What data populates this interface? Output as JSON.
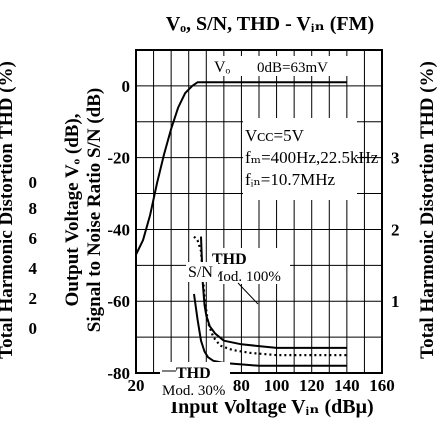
{
  "chart_data": {
    "type": "line",
    "title": "Vₒ, S/N, THD - Vᵢₙ (FM)",
    "xlabel": "Input Voltage Vᵢₙ (dBμ)",
    "ylabel": "Output Voltage Vₒ (dB), Signal to Noise Ratio S/N (dB)",
    "ylabel_line1": "Output Voltage Vₒ (dB),",
    "ylabel_line2": "Signal to Noise Ratio S/N (dB)",
    "y2label": "Total Harmonic Distortion THD (%)",
    "y2label_left": "Total Harmonic Distortion THD (%)",
    "xlim": [
      20,
      160
    ],
    "ylim": [
      -80,
      10
    ],
    "y2lim": [
      0,
      4.5
    ],
    "grid": true,
    "x_ticks": [
      20,
      40,
      60,
      80,
      100,
      120,
      140,
      160
    ],
    "x_tick_labels": [
      "20",
      "40",
      "60",
      "80",
      "100",
      "120",
      "140",
      "160"
    ],
    "y_ticks": [
      0,
      -20,
      -40,
      -60,
      -80
    ],
    "y_tick_labels": [
      "0",
      "-20",
      "-40",
      "-60",
      "-80"
    ],
    "y2_ticks": [
      1,
      2,
      3
    ],
    "y2_tick_labels": [
      "1",
      "2",
      "3"
    ],
    "left_cut_labels": [
      "0",
      "8",
      "6",
      "4",
      "2",
      "0"
    ],
    "annotations": {
      "vo_label": "Vₒ",
      "vo_ref": "0dB=63mV",
      "vcc": "Vᴄᴄ=5V",
      "fm": "fₘ=400Hz,22.5kHz",
      "fin": "fᵢₙ=10.7MHz",
      "thd_100_line1": "THD",
      "thd_100_line2": "Mod. 100%",
      "sn": "S/N",
      "thd_30_line1": "THD",
      "thd_30_line2": "Mod. 30%"
    },
    "series": [
      {
        "name": "Vₒ",
        "axis": "left",
        "style": "solid",
        "x": [
          20,
          24,
          28,
          32,
          36,
          40,
          44,
          48,
          52,
          55,
          140
        ],
        "y": [
          -47,
          -43,
          -36,
          -27,
          -19,
          -12,
          -6,
          -2,
          0,
          1,
          1
        ]
      },
      {
        "name": "S/N",
        "axis": "left",
        "style": "solid",
        "x": [
          57,
          58,
          59,
          60,
          62,
          65,
          70,
          80,
          90,
          100,
          140
        ],
        "y": [
          -42,
          -55,
          -61,
          -64,
          -67,
          -69,
          -71,
          -72,
          -72.5,
          -73,
          -73
        ]
      },
      {
        "name": "THD Mod. 100%",
        "axis": "right",
        "style": "dotted",
        "x": [
          53,
          55,
          57,
          59,
          61,
          64,
          68,
          75,
          85,
          100,
          140
        ],
        "y": [
          1.9,
          1.85,
          1.7,
          1.05,
          0.7,
          0.5,
          0.38,
          0.32,
          0.28,
          0.25,
          0.25
        ]
      },
      {
        "name": "THD Mod. 30%",
        "axis": "right",
        "style": "solid",
        "x": [
          53,
          55,
          57,
          59,
          61,
          64,
          70,
          80,
          90,
          140
        ],
        "y": [
          1.1,
          0.75,
          0.45,
          0.3,
          0.22,
          0.17,
          0.14,
          0.12,
          0.1,
          0.1
        ]
      }
    ]
  }
}
